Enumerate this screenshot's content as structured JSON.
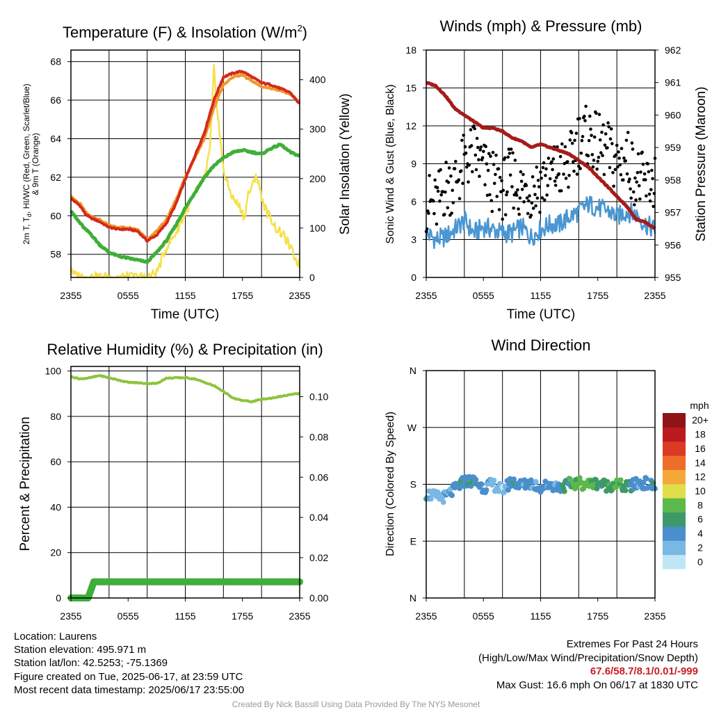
{
  "chart_data": [
    {
      "type": "line",
      "title": "Temperature (F) & Insolation (W/m",
      "title_sup": "2",
      "title_close": ")",
      "xlabel": "Time (UTC)",
      "ylabel_left_lines": [
        "2m T, T",
        "d",
        ", HI/WC (Red, Green, Scarlet/Blue)",
        "& 9m T (Orange)"
      ],
      "ylabel_right": "Solar Insolation (Yellow)",
      "x_ticks": [
        "2355",
        "0555",
        "1155",
        "1755",
        "2355"
      ],
      "y_ticks_left": [
        58,
        60,
        62,
        64,
        66,
        68
      ],
      "y_ticks_right": [
        0,
        100,
        200,
        300,
        400
      ],
      "ylim_left": [
        56.8,
        68.6
      ],
      "ylim_right": [
        0,
        460
      ],
      "x_range_hours": [
        0,
        24
      ],
      "series": [
        {
          "color": "#f0982a",
          "x": [
            0,
            0.5,
            1,
            1.5,
            2,
            3,
            4,
            5,
            6,
            7,
            8,
            9,
            10,
            11,
            12,
            13,
            14,
            15,
            16,
            17,
            18,
            19,
            20,
            21,
            22,
            23,
            24
          ],
          "values": [
            61.0,
            60.8,
            60.6,
            60.2,
            60.0,
            59.8,
            59.5,
            59.4,
            59.4,
            59.3,
            58.8,
            59.2,
            59.8,
            60.8,
            62.0,
            63.0,
            64.0,
            65.6,
            66.8,
            67.2,
            67.3,
            67.0,
            66.7,
            66.6,
            66.5,
            66.3,
            65.9
          ]
        },
        {
          "color": "#d42a1c",
          "x": [
            0,
            0.5,
            1,
            1.5,
            2,
            3,
            4,
            5,
            6,
            7,
            8,
            9,
            10,
            11,
            12,
            13,
            14,
            15,
            16,
            17,
            18,
            19,
            20,
            21,
            22,
            23,
            24
          ],
          "values": [
            60.9,
            60.7,
            60.5,
            60.1,
            59.9,
            59.7,
            59.4,
            59.3,
            59.3,
            59.2,
            58.7,
            59.0,
            59.6,
            60.6,
            61.9,
            63.1,
            64.3,
            66.0,
            67.2,
            67.4,
            67.5,
            67.2,
            66.9,
            66.8,
            66.6,
            66.4,
            65.8
          ]
        },
        {
          "color": "#3fae3a",
          "x": [
            0,
            0.5,
            1,
            1.5,
            2,
            3,
            4,
            5,
            6,
            7,
            8,
            9,
            10,
            11,
            12,
            13,
            14,
            15,
            16,
            17,
            18,
            19,
            20,
            21,
            22,
            23,
            24
          ],
          "values": [
            60.3,
            59.9,
            59.6,
            59.3,
            59.1,
            58.5,
            58.1,
            57.9,
            57.8,
            57.7,
            57.6,
            58.1,
            58.7,
            59.5,
            60.4,
            61.2,
            62.0,
            62.6,
            63.0,
            63.3,
            63.4,
            63.3,
            63.2,
            63.5,
            63.7,
            63.3,
            63.1
          ]
        },
        {
          "color": "#f5e04a",
          "x": [
            0,
            0.3,
            1,
            2,
            3,
            4,
            5,
            6,
            7,
            8,
            9,
            10,
            11,
            12,
            13,
            14,
            14.6,
            15,
            15.4,
            15.8,
            16.2,
            16.6,
            17,
            17.4,
            17.8,
            18.2,
            18.6,
            19,
            19.4,
            19.8,
            20.2,
            20.6,
            21,
            21.5,
            22,
            22.5,
            23,
            23.5,
            24
          ],
          "values": [
            25,
            5,
            2,
            1,
            1,
            1,
            1,
            1,
            1,
            1,
            10,
            60,
            90,
            130,
            170,
            200,
            260,
            420,
            330,
            250,
            200,
            180,
            160,
            150,
            140,
            120,
            170,
            180,
            210,
            180,
            150,
            130,
            120,
            100,
            90,
            80,
            60,
            40,
            25
          ]
        }
      ]
    },
    {
      "type": "line",
      "title": "Winds (mph) & Pressure (mb)",
      "xlabel": "Time (UTC)",
      "ylabel_left": "Sonic Wind & Gust (Blue, Black)",
      "ylabel_right": "Station Pressure (Maroon)",
      "x_ticks": [
        "2355",
        "0555",
        "1155",
        "1755",
        "2355"
      ],
      "y_ticks_left": [
        0,
        3,
        6,
        9,
        12,
        15,
        18
      ],
      "y_ticks_right": [
        955,
        956,
        957,
        958,
        959,
        960,
        961,
        962
      ],
      "ylim_left": [
        0,
        18
      ],
      "ylim_right": [
        955,
        962
      ],
      "series": [
        {
          "name": "Sonic Wind",
          "color": "#4a96d2",
          "x": [
            0,
            1,
            2,
            3,
            4,
            5,
            6,
            7,
            8,
            9,
            10,
            11,
            12,
            13,
            14,
            15,
            16,
            17,
            18,
            19,
            20,
            21,
            22,
            23,
            24
          ],
          "values": [
            3.5,
            3.0,
            3.2,
            3.8,
            4.5,
            3.5,
            4.0,
            3.8,
            3.5,
            3.5,
            4.0,
            3.2,
            3.8,
            4.2,
            4.2,
            4.8,
            5.2,
            5.8,
            5.5,
            5.3,
            4.8,
            5.2,
            5.0,
            4.2,
            3.8
          ]
        },
        {
          "name": "Gust",
          "color": "#000000",
          "type": "scatter",
          "x": [
            0,
            1,
            2,
            3,
            4,
            5,
            6,
            7,
            8,
            9,
            10,
            11,
            12,
            13,
            14,
            15,
            16,
            17,
            18,
            19,
            20,
            21,
            22,
            23,
            24
          ],
          "values": [
            6.0,
            5.6,
            7.2,
            7.5,
            9.0,
            10.0,
            8.5,
            7.5,
            7.0,
            8.0,
            6.8,
            7.0,
            7.5,
            8.2,
            8.5,
            8.8,
            11.0,
            11.2,
            10.5,
            10.0,
            9.0,
            9.5,
            8.0,
            7.2,
            7.8
          ]
        },
        {
          "name": "Pressure",
          "color": "#a51c1c",
          "x": [
            0,
            1,
            2,
            3,
            4,
            5,
            6,
            7,
            8,
            9,
            10,
            11,
            12,
            13,
            14,
            15,
            16,
            17,
            18,
            19,
            20,
            21,
            22,
            23,
            24
          ],
          "values": [
            961.0,
            960.9,
            960.6,
            960.2,
            960.0,
            959.8,
            959.6,
            959.6,
            959.5,
            959.3,
            959.2,
            959.0,
            959.1,
            959.0,
            958.9,
            958.8,
            958.6,
            958.4,
            958.1,
            957.8,
            957.5,
            957.2,
            956.8,
            956.7,
            956.5
          ]
        }
      ]
    },
    {
      "type": "line",
      "title": "Relative Humidity (%) & Precipitation (in)",
      "ylabel_left": "Percent & Precipitation",
      "x_ticks": [
        "2355",
        "0555",
        "1155",
        "1755",
        "2355"
      ],
      "y_ticks_left": [
        0,
        20,
        40,
        60,
        80,
        100
      ],
      "y_ticks_right": [
        "0.00",
        "0.02",
        "0.04",
        "0.06",
        "0.08",
        "0.10"
      ],
      "ylim_left": [
        0,
        102
      ],
      "ylim_right": [
        0,
        0.115
      ],
      "series": [
        {
          "name": "Relative Humidity",
          "color": "#8dc43e",
          "x": [
            0,
            1,
            2,
            3,
            4,
            5,
            6,
            7,
            8,
            9,
            10,
            11,
            12,
            13,
            14,
            15,
            16,
            17,
            18,
            19,
            20,
            21,
            22,
            23,
            24
          ],
          "values": [
            97.5,
            96.5,
            97.0,
            98.0,
            97.0,
            96.0,
            95.0,
            94.8,
            94.5,
            94.5,
            96.8,
            97.0,
            97.0,
            96.5,
            95.0,
            93.5,
            91.0,
            88.0,
            87.0,
            86.5,
            87.5,
            88.0,
            88.8,
            89.5,
            90.2
          ]
        },
        {
          "name": "Precipitation",
          "color": "#3fae3a",
          "x": [
            0,
            1.8,
            2.4,
            24
          ],
          "values": [
            0.0,
            0.0,
            0.008,
            0.008
          ]
        }
      ]
    },
    {
      "type": "scatter",
      "title": "Wind Direction",
      "ylabel_left": "Direction (Colored By Speed)",
      "x_ticks": [
        "2355",
        "0555",
        "1155",
        "1755",
        "2355"
      ],
      "y_ticks_left": [
        "N",
        "E",
        "S",
        "W",
        "N"
      ],
      "ylim": [
        0,
        360
      ],
      "colorbar_title": "mph",
      "colorbar_labels": [
        "0",
        "2",
        "4",
        "6",
        "8",
        "10",
        "12",
        "14",
        "16",
        "18",
        "20+"
      ],
      "colorbar_colors": [
        "#bfe6f7",
        "#79b8e4",
        "#4a8fcc",
        "#3d9a68",
        "#5cb84a",
        "#e0de4a",
        "#f5a83a",
        "#ec6e2a",
        "#dc3a24",
        "#bb1a1e",
        "#8f1418"
      ],
      "x": [
        0,
        1,
        2,
        3,
        4,
        5,
        6,
        7,
        8,
        9,
        10,
        11,
        12,
        13,
        14,
        15,
        16,
        17,
        18,
        19,
        20,
        21,
        22,
        23,
        24
      ],
      "values": [
        165,
        160,
        160,
        172,
        185,
        185,
        175,
        180,
        170,
        185,
        178,
        182,
        175,
        180,
        175,
        180,
        182,
        180,
        182,
        178,
        180,
        175,
        180,
        182,
        175
      ],
      "speed_class": [
        2,
        1,
        1,
        2,
        2,
        2,
        2,
        1,
        1,
        2,
        2,
        2,
        2,
        2,
        2,
        3,
        4,
        4,
        3,
        3,
        4,
        3,
        2,
        2,
        2
      ]
    }
  ],
  "footer": {
    "location": "Location: Laurens",
    "elevation": "Station elevation: 495.971 m",
    "latlon": "Station lat/lon: 42.5253; -75.1369",
    "created": "Figure created on Tue, 2025-06-17, at 23:59 UTC",
    "recent": "Most recent data timestamp: 2025/06/17 23:55:00",
    "extremes_title": "Extremes For Past 24 Hours",
    "extremes_sub": "(High/Low/Max Wind/Precipitation/Snow Depth)",
    "extremes_values": "67.6/58.7/8.1/0.01/-999",
    "max_gust": "Max Gust: 16.6 mph On 06/17 at 1830 UTC",
    "credit": "Created By Nick Bassill Using Data Provided By The NYS Mesonet"
  }
}
